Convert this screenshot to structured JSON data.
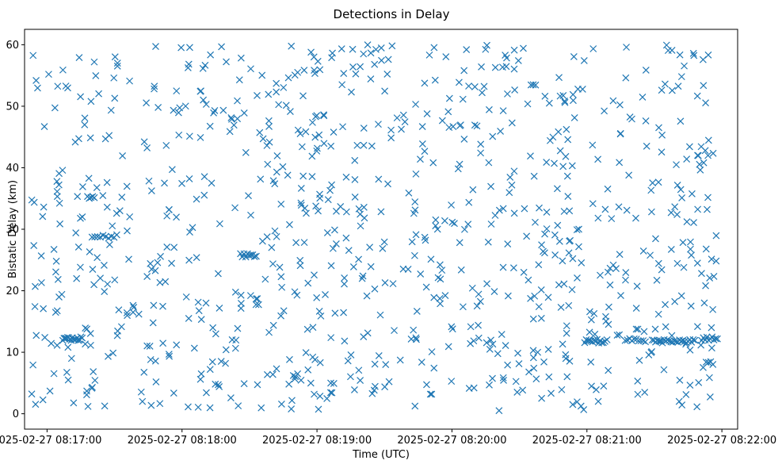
{
  "chart_data": {
    "type": "scatter",
    "title": "Detections in Delay",
    "xlabel": "Time (UTC)",
    "ylabel": "Bistatic Delay (km)",
    "marker": "x",
    "color": "#1f77b4",
    "grid": false,
    "legend": "none",
    "x_axis_type": "datetime",
    "xlim": [
      "2025-02-27 08:16:50",
      "2025-02-27 08:22:07"
    ],
    "ylim": [
      -2.5,
      62.5
    ],
    "x_ticks": [
      "2025-02-27 08:17:00",
      "2025-02-27 08:18:00",
      "2025-02-27 08:19:00",
      "2025-02-27 08:20:00",
      "2025-02-27 08:21:00",
      "2025-02-27 08:22:00"
    ],
    "y_ticks": [
      0,
      10,
      20,
      30,
      40,
      50,
      60
    ],
    "point_count_description": "Approximately 1000 detections scattered uniformly between 0 and 60 km over 08:16:53-08:21:58, with dense near-constant tracks near 12 km around 08:17:08-08:17:15 and 08:20:55-08:21:58, near 35 km around 08:17:19, near 29 km around 08:17:20-08:17:30, near 26 km around 08:18:26-08:18:33, and near 12 km at 08:21:55.",
    "tracks": [
      {
        "t_start": "2025-02-27 08:17:07",
        "t_end": "2025-02-27 08:17:15",
        "y": 12.2,
        "n": 16
      },
      {
        "t_start": "2025-02-27 08:17:18",
        "t_end": "2025-02-27 08:17:21",
        "y": 35.3,
        "n": 5
      },
      {
        "t_start": "2025-02-27 08:17:20",
        "t_end": "2025-02-27 08:17:31",
        "y": 28.8,
        "n": 10
      },
      {
        "t_start": "2025-02-27 08:18:26",
        "t_end": "2025-02-27 08:18:33",
        "y": 25.8,
        "n": 10
      },
      {
        "t_start": "2025-02-27 08:20:59",
        "t_end": "2025-02-27 08:21:08",
        "y": 11.8,
        "n": 14
      },
      {
        "t_start": "2025-02-27 08:21:17",
        "t_end": "2025-02-27 08:21:26",
        "y": 12.0,
        "n": 10
      },
      {
        "t_start": "2025-02-27 08:21:29",
        "t_end": "2025-02-27 08:21:48",
        "y": 11.8,
        "n": 26
      },
      {
        "t_start": "2025-02-27 08:21:51",
        "t_end": "2025-02-27 08:21:58",
        "y": 12.2,
        "n": 10
      },
      {
        "t_start": "2025-02-27 08:21:53",
        "t_end": "2025-02-27 08:21:56",
        "y": 8.2,
        "n": 4
      }
    ],
    "random_seed": 20250227,
    "random_count": 900,
    "random_t_range": [
      "2025-02-27 08:16:53",
      "2025-02-27 08:21:58"
    ],
    "random_y_range": [
      0.5,
      60.0
    ]
  }
}
